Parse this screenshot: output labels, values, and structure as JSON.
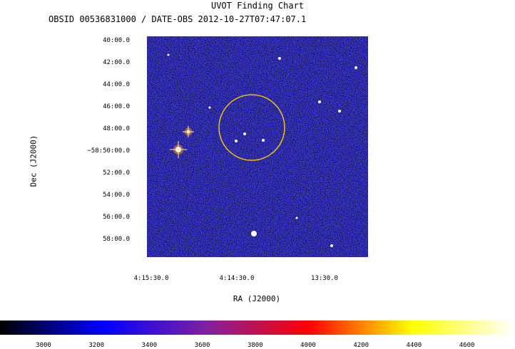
{
  "title": "UVOT Finding Chart",
  "subtitle": "OBSID 00536831000 / DATE-OBS 2012-10-27T07:47:07.1",
  "xlabel": "RA (J2000)",
  "ylabel": "Dec (J2000)",
  "dec_ticks": [
    "40:00.0",
    "42:00.0",
    "44:00.0",
    "46:00.0",
    "48:00.0",
    "−58:50:00.0",
    "52:00.0",
    "54:00.0",
    "56:00.0",
    "58:00.0"
  ],
  "ra_ticks": [
    "4:15:30.0",
    "4:14:30.0",
    "13:30.0"
  ],
  "colorbar": {
    "ticks": [
      "3000",
      "3200",
      "3400",
      "3600",
      "3800",
      "4000",
      "4200",
      "4400",
      "4600"
    ],
    "colors": [
      "#000000",
      "#0000ff",
      "#8020a0",
      "#ff0000",
      "#ffff00",
      "#ffffff"
    ]
  },
  "colors": {
    "noise_blue": "#3a3ad8",
    "noise_red": "#d02020",
    "circle": "#f2c200"
  }
}
